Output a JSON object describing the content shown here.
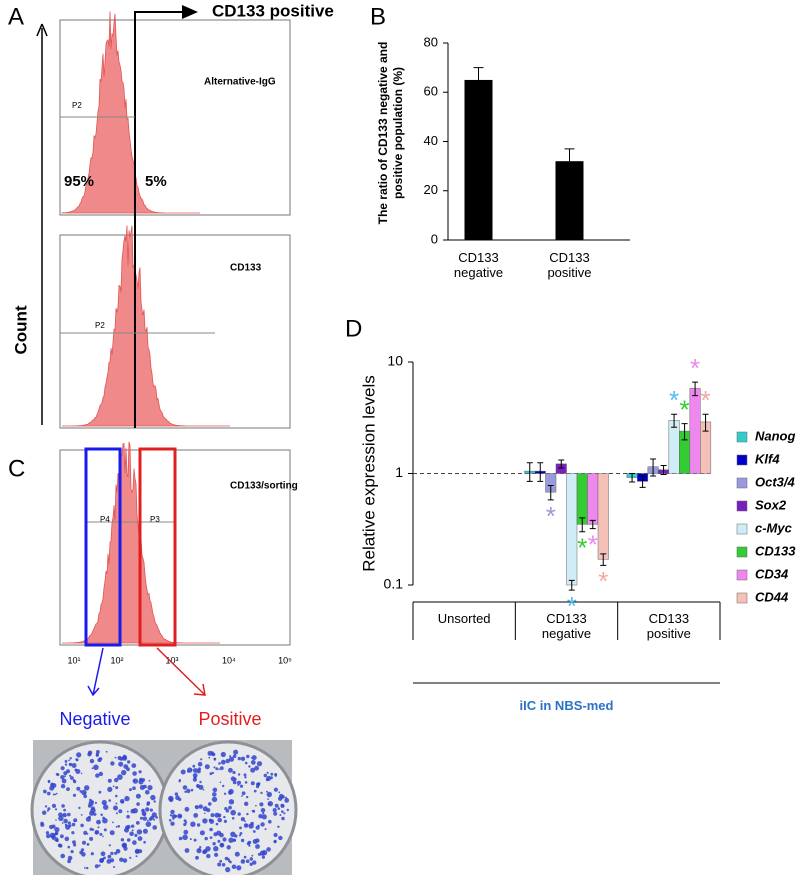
{
  "panel_a": {
    "label": "A",
    "arrow_label": "CD133 positive",
    "axis_label": "Count",
    "plots": [
      {
        "title": "Alternative-IgG",
        "gate": "P2",
        "left_percent": "95%",
        "right_percent": "5%"
      },
      {
        "title": "CD133",
        "gate": "P2"
      }
    ]
  },
  "panel_c": {
    "label": "C",
    "title": "CD133/sorting",
    "gates": [
      "P4",
      "P3"
    ],
    "xticks": [
      "10¹",
      "10²",
      "10³",
      "10⁴",
      "10⁵"
    ],
    "outcomes": [
      "Negative",
      "Positive"
    ]
  },
  "chart_data": [
    {
      "type": "bar",
      "panel_label": "B",
      "y_label": "The ratio of CD133 negative and positive population (%)",
      "categories": [
        "CD133 negative",
        "CD133 positive"
      ],
      "values": [
        65,
        32
      ],
      "errors": [
        5,
        5
      ],
      "color": "#000000",
      "ylim": [
        0,
        80
      ],
      "yticks": [
        0,
        20,
        40,
        60,
        80
      ]
    },
    {
      "type": "grouped_bar",
      "panel_label": "D",
      "y_label": "Relative expression levels",
      "x_label": "iIC in NBS-med",
      "log_scale": true,
      "ylim": [
        0.1,
        10
      ],
      "yticks": [
        0.1,
        1,
        10
      ],
      "categories": [
        "Unsorted",
        "CD133 negative",
        "CD133 positive"
      ],
      "series": [
        {
          "name": "Nanog",
          "color": "#33cccc",
          "values": [
            1,
            1.05,
            0.92
          ],
          "errors": [
            null,
            0.2,
            0.08
          ],
          "significance": [
            null,
            null,
            null
          ]
        },
        {
          "name": "Klf4",
          "color": "#0000cc",
          "values": [
            1,
            1.05,
            0.85
          ],
          "errors": [
            null,
            0.2,
            0.1
          ],
          "significance": [
            null,
            null,
            null
          ]
        },
        {
          "name": "Oct3/4",
          "color": "#9999dd",
          "values": [
            1,
            0.68,
            1.15
          ],
          "errors": [
            null,
            0.1,
            0.2
          ],
          "significance": [
            null,
            "*",
            null
          ]
        },
        {
          "name": "Sox2",
          "color": "#7a1fbf",
          "values": [
            1,
            1.22,
            1.08
          ],
          "errors": [
            null,
            0.1,
            0.1
          ],
          "significance": [
            null,
            null,
            null
          ]
        },
        {
          "name": "c-Myc",
          "color": "#d0ecf6",
          "significance_color": "#55bbee",
          "values": [
            1,
            0.1,
            3.0
          ],
          "errors": [
            null,
            0.01,
            0.4
          ],
          "significance": [
            null,
            "*",
            "*"
          ]
        },
        {
          "name": "CD133",
          "color": "#33cc33",
          "values": [
            1,
            0.35,
            2.4
          ],
          "errors": [
            null,
            0.05,
            0.4
          ],
          "significance": [
            null,
            "*",
            "*"
          ]
        },
        {
          "name": "CD34",
          "color": "#ee88ee",
          "values": [
            1,
            0.35,
            5.8
          ],
          "errors": [
            null,
            0.03,
            0.8
          ],
          "significance": [
            null,
            "*",
            "*"
          ]
        },
        {
          "name": "CD44",
          "color": "#f4c0b8",
          "significance_color": "#f4a8a0",
          "values": [
            1,
            0.17,
            2.9
          ],
          "errors": [
            null,
            0.02,
            0.5
          ],
          "significance": [
            null,
            "*",
            "*"
          ]
        }
      ]
    }
  ]
}
